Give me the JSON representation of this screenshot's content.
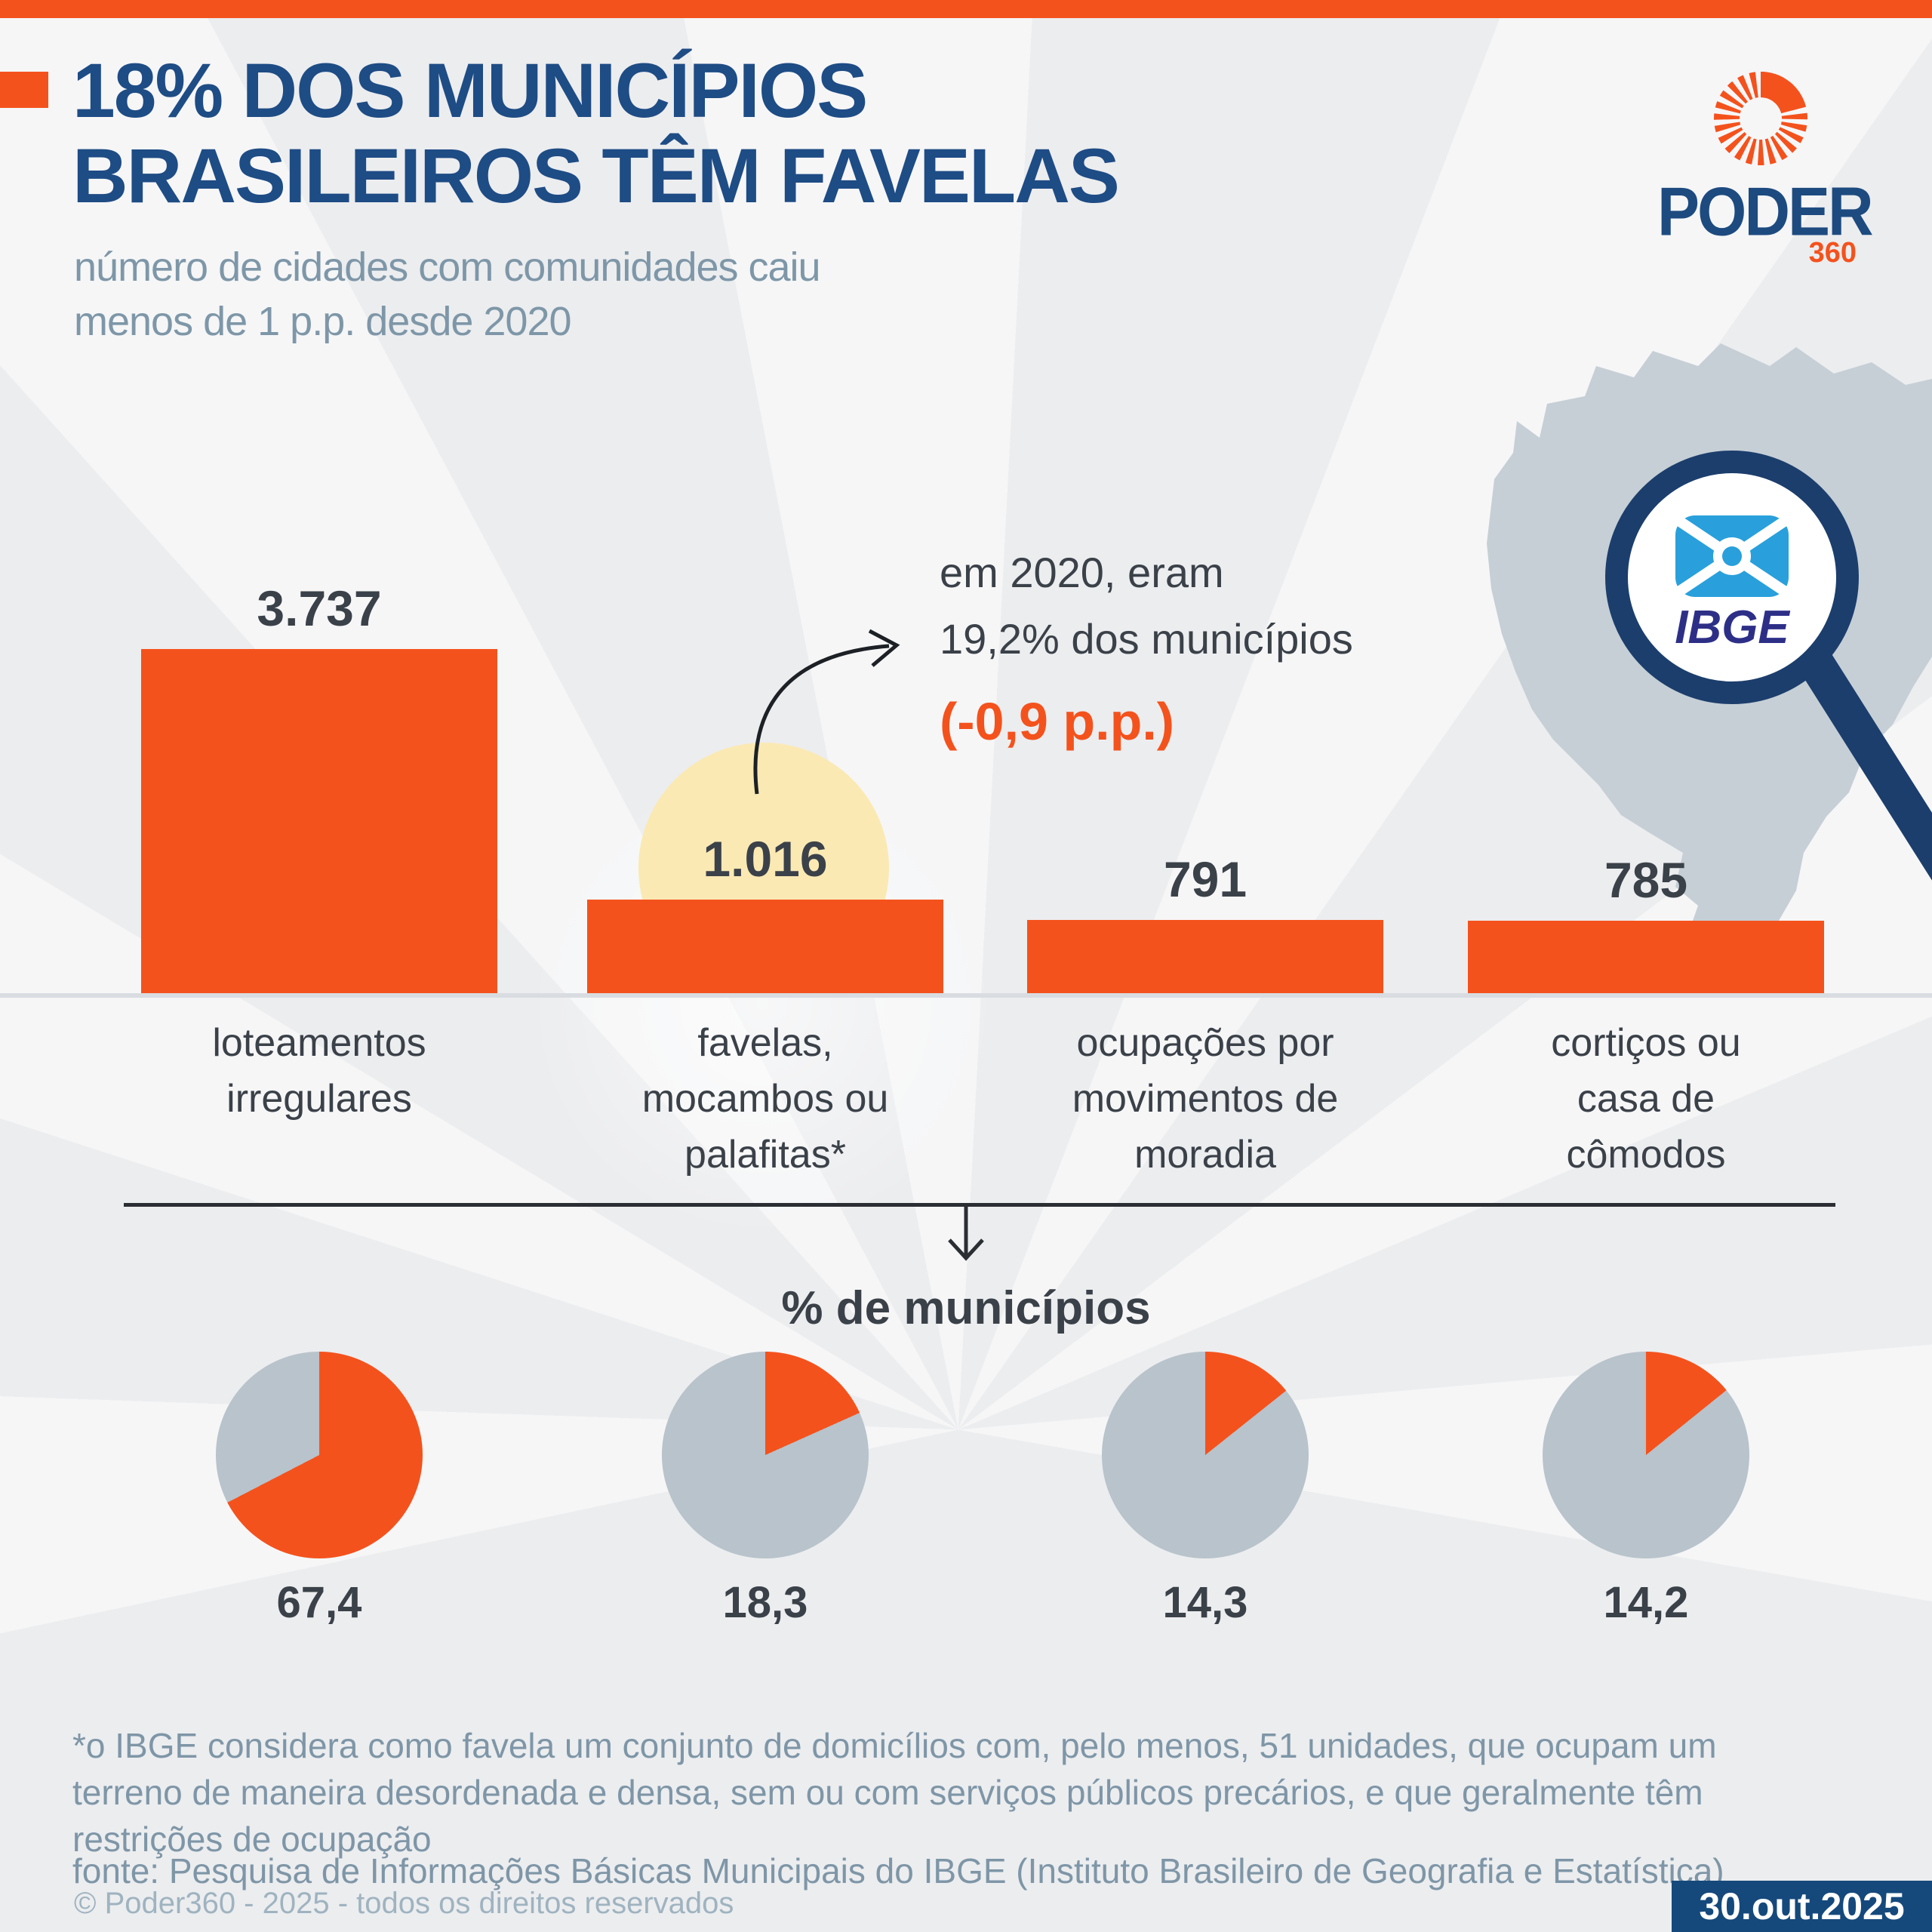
{
  "accent_color": "#F4521D",
  "navy_color": "#1E4C85",
  "header": {
    "title_line1": "18% DOS MUNICÍPIOS",
    "title_line2": "BRASILEIROS TÊM FAVELAS",
    "subtitle_line1": "número de cidades com comunidades caiu",
    "subtitle_line2": "menos de 1 p.p. desde 2020"
  },
  "logo": {
    "word": "PODER",
    "suffix": "360"
  },
  "annotation": {
    "line1": "em 2020, eram",
    "line2": "19,2% dos municípios",
    "delta": "(-0,9 p.p.)"
  },
  "map_badge": "IBGE",
  "chart_data": [
    {
      "type": "bar",
      "title": "",
      "categories": [
        "loteamentos irregulares",
        "favelas, mocambos ou palafitas*",
        "ocupações por movimentos de moradia",
        "cortiços ou casa de cômodos"
      ],
      "category_lines": [
        [
          "loteamentos",
          "irregulares"
        ],
        [
          "favelas,",
          "mocambos ou",
          "palafitas*"
        ],
        [
          "ocupações por",
          "movimentos de",
          "moradia"
        ],
        [
          "cortiços ou",
          "casa de",
          "cômodos"
        ]
      ],
      "values": [
        3737,
        1016,
        791,
        785
      ],
      "value_labels": [
        "3.737",
        "1.016",
        "791",
        "785"
      ],
      "bar_color": "#F4521D",
      "highlighted_category": "favelas, mocambos ou palafitas*"
    },
    {
      "type": "pie",
      "title": "% de municípios",
      "categories": [
        "loteamentos irregulares",
        "favelas, mocambos ou palafitas*",
        "ocupações por movimentos de moradia",
        "cortiços ou casa de cômodos"
      ],
      "values": [
        67.4,
        18.3,
        14.3,
        14.2
      ],
      "value_labels": [
        "67,4",
        "18,3",
        "14,3",
        "14,2"
      ],
      "slice_color": "#F4521D",
      "rest_color": "#B8C3CB",
      "slice_start": "12 o'clock, clockwise"
    }
  ],
  "footnote": {
    "line1": "*o IBGE considera como favela um conjunto de domicílios com, pelo menos, 51 unidades, que ocupam um",
    "line2": "terreno de maneira desordenada e densa, sem ou com serviços públicos precários, e que geralmente têm",
    "line3": "restrições de ocupação",
    "source": "fonte: Pesquisa de Informações Básicas Municipais do IBGE (Instituto Brasileiro de Geografia e Estatística)"
  },
  "footer": {
    "copyright": "© Poder360 - 2025 - todos os direitos reservados",
    "date": "30.out.2025"
  }
}
